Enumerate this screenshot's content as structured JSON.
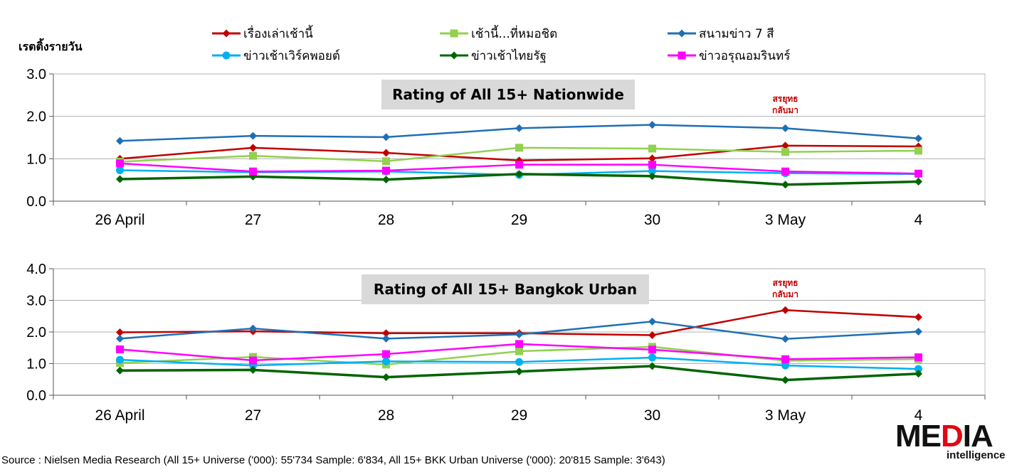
{
  "y_label": "เรตติ้งรายวัน",
  "legend": [
    {
      "name": "เรื่องเล่าเช้านี้",
      "color": "#c00000",
      "marker": "diamond"
    },
    {
      "name": "เช้านี้...ที่หมอชิต",
      "color": "#92d050",
      "marker": "square"
    },
    {
      "name": "สนามข่าว 7 สี",
      "color": "#1f6fb5",
      "marker": "diamond"
    },
    {
      "name": "ข่าวเช้าเวิร์คพอยต์",
      "color": "#00b0f0",
      "marker": "circle"
    },
    {
      "name": "ข่าวเช้าไทยรัฐ",
      "color": "#006400",
      "marker": "diamond"
    },
    {
      "name": "ข่าวอรุณอมรินทร์",
      "color": "#ff00ff",
      "marker": "square"
    }
  ],
  "chart_data": [
    {
      "type": "line",
      "title": "Rating of All 15+ Nationwide",
      "categories": [
        "26 April",
        "27",
        "28",
        "29",
        "30",
        "3 May",
        "4"
      ],
      "ylim": [
        0,
        3
      ],
      "yticks": [
        "0.0",
        "1.0",
        "2.0",
        "3.0"
      ],
      "annotation": {
        "text": [
          "สรยุทธ",
          "กลับมา"
        ],
        "category": "3 May"
      },
      "series": [
        {
          "name": "เรื่องเล่าเช้านี้",
          "values": [
            1.0,
            1.26,
            1.14,
            0.96,
            1.01,
            1.31,
            1.29
          ]
        },
        {
          "name": "เช้านี้...ที่หมอชิต",
          "values": [
            0.93,
            1.07,
            0.94,
            1.26,
            1.24,
            1.16,
            1.19
          ]
        },
        {
          "name": "สนามข่าว 7 สี",
          "values": [
            1.42,
            1.54,
            1.51,
            1.72,
            1.8,
            1.72,
            1.48
          ]
        },
        {
          "name": "ข่าวเช้าเวิร์คพอยต์",
          "values": [
            0.73,
            0.68,
            0.7,
            0.62,
            0.71,
            0.66,
            0.64
          ]
        },
        {
          "name": "ข่าวเช้าไทยรัฐ",
          "values": [
            0.52,
            0.58,
            0.51,
            0.64,
            0.59,
            0.39,
            0.46
          ]
        },
        {
          "name": "ข่าวอรุณอมรินทร์",
          "values": [
            0.89,
            0.7,
            0.72,
            0.86,
            0.86,
            0.7,
            0.65
          ]
        }
      ]
    },
    {
      "type": "line",
      "title": "Rating of All 15+ Bangkok Urban",
      "categories": [
        "26 April",
        "27",
        "28",
        "29",
        "30",
        "3 May",
        "4"
      ],
      "ylim": [
        0,
        4
      ],
      "yticks": [
        "0.0",
        "1.0",
        "2.0",
        "3.0",
        "4.0"
      ],
      "annotation": {
        "text": [
          "สรยุทธ",
          "กลับมา"
        ],
        "category": "3 May"
      },
      "series": [
        {
          "name": "เรื่องเล่าเช้านี้",
          "values": [
            1.99,
            2.02,
            1.96,
            1.96,
            1.9,
            2.69,
            2.47
          ]
        },
        {
          "name": "เช้านี้...ที่หมอชิต",
          "values": [
            1.02,
            1.21,
            0.97,
            1.39,
            1.53,
            1.09,
            1.14
          ]
        },
        {
          "name": "สนามข่าว 7 สี",
          "values": [
            1.79,
            2.11,
            1.79,
            1.92,
            2.33,
            1.78,
            2.01
          ]
        },
        {
          "name": "ข่าวเช้าเวิร์คพอยต์",
          "values": [
            1.12,
            0.94,
            1.07,
            1.05,
            1.19,
            0.94,
            0.83
          ]
        },
        {
          "name": "ข่าวเช้าไทยรัฐ",
          "values": [
            0.78,
            0.8,
            0.57,
            0.75,
            0.92,
            0.48,
            0.68
          ]
        },
        {
          "name": "ข่าวอรุณอมรินทร์",
          "values": [
            1.45,
            1.1,
            1.3,
            1.62,
            1.44,
            1.14,
            1.2
          ]
        }
      ]
    }
  ],
  "source": "Source : Nielsen Media Research (All 15+ Universe ('000): 55'734 Sample: 6'834, All 15+ BKK Urban Universe ('000): 20'815 Sample: 3'643)",
  "logo": {
    "main_left": "ME",
    "main_mid": "D",
    "main_right": "IA",
    "sub": "intelligence"
  }
}
